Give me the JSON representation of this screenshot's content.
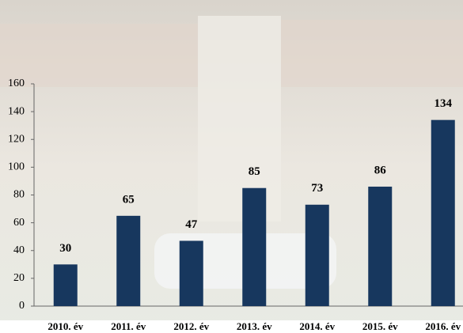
{
  "chart_data": {
    "type": "bar",
    "categories": [
      "2010. év",
      "2011. év",
      "2012. év",
      "2013. év",
      "2014. év",
      "2015. év",
      "2016. év"
    ],
    "values": [
      30,
      65,
      47,
      85,
      73,
      86,
      134
    ],
    "color": "#17375e",
    "ylim": [
      0,
      160
    ],
    "yticks": [
      0,
      20,
      40,
      60,
      80,
      100,
      120,
      140,
      160
    ]
  }
}
